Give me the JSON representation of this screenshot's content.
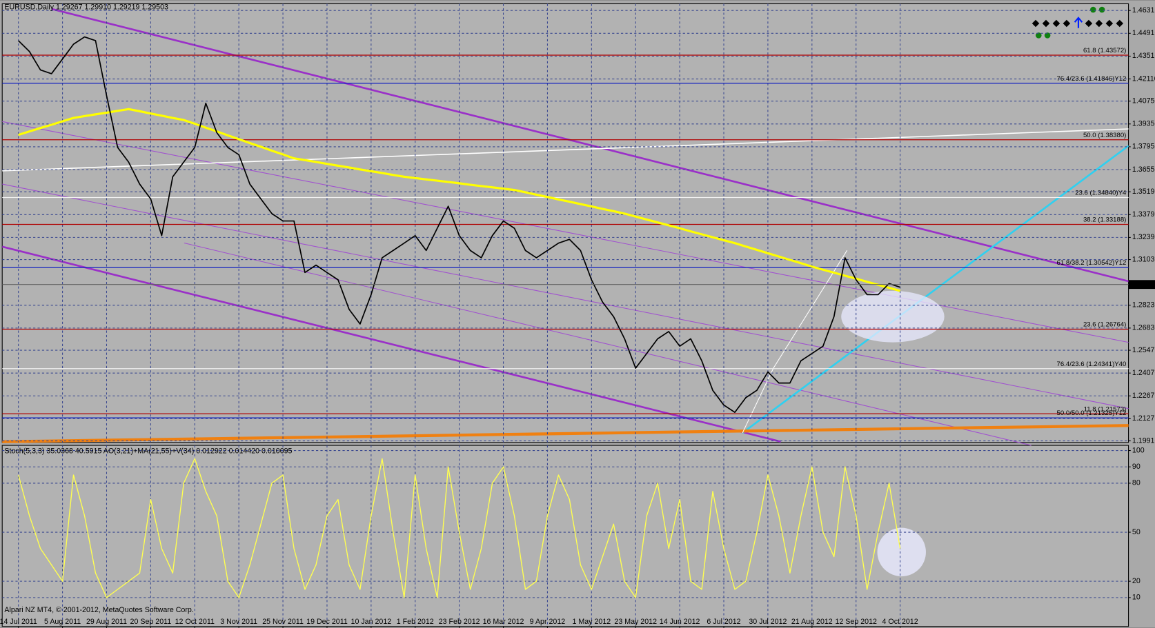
{
  "chart_data": [
    {
      "type": "line",
      "title": "EURUSD,Daily  1.29267 1.29910 1.29219 1.29503",
      "categories": [
        "14 Jul 2011",
        null,
        null,
        null,
        "5 Aug 2011",
        null,
        null,
        null,
        "29 Aug 2011",
        null,
        null,
        null,
        "20 Sep 2011",
        null,
        null,
        null,
        "12 Oct 2011",
        null,
        null,
        null,
        "3 Nov 2011",
        null,
        null,
        null,
        "25 Nov 2011",
        null,
        null,
        null,
        "19 Dec 2011",
        null,
        null,
        null,
        "10 Jan 2012",
        null,
        null,
        null,
        "1 Feb 2012",
        null,
        null,
        null,
        "23 Feb 2012",
        null,
        null,
        null,
        "16 Mar 2012",
        null,
        null,
        null,
        "9 Apr 2012",
        null,
        null,
        null,
        "1 May 2012",
        null,
        null,
        null,
        "23 May 2012",
        null,
        null,
        null,
        "14 Jun 2012",
        null,
        null,
        null,
        "6 Jul 2012",
        null,
        null,
        null,
        "30 Jul 2012",
        null,
        null,
        null,
        "21 Aug 2012",
        null,
        null,
        null,
        "12 Sep 2012",
        null,
        null,
        null,
        "4 Oct 2012",
        null,
        null,
        null
      ],
      "series": [
        {
          "name": "EURUSD",
          "color": "#000000",
          "values": [
            1.4446,
            1.4379,
            1.4266,
            1.4243,
            1.4333,
            1.4424,
            1.4469,
            1.4446,
            1.4108,
            1.3791,
            1.3701,
            1.3566,
            1.3475,
            1.325,
            1.3611,
            1.3701,
            1.3791,
            1.4062,
            1.3882,
            1.3791,
            1.3746,
            1.3566,
            1.3475,
            1.3385,
            1.334,
            1.334,
            1.3024,
            1.3069,
            1.3024,
            1.2979,
            1.2798,
            1.2708,
            1.2888,
            1.3114,
            1.3159,
            1.3204,
            1.325,
            1.3159,
            1.3295,
            1.343,
            1.325,
            1.3159,
            1.3114,
            1.325,
            1.334,
            1.3295,
            1.3159,
            1.3114,
            1.3159,
            1.3204,
            1.3227,
            1.3159,
            1.2979,
            1.2843,
            1.2753,
            1.2617,
            1.2437,
            1.2527,
            1.2617,
            1.2662,
            1.2572,
            1.2617,
            1.2482,
            1.2301,
            1.2211,
            1.2166,
            1.2256,
            1.2301,
            1.2414,
            1.2346,
            1.2346,
            1.2482,
            1.2527,
            1.2572,
            1.2753,
            1.3114,
            1.2979,
            1.2888,
            1.2888,
            1.2956,
            1.2933,
            null,
            null,
            null
          ]
        },
        {
          "name": "MA",
          "color": "#ffff00",
          "values": [
            1.3868,
            1.3889,
            1.391,
            1.393,
            1.3951,
            1.3972,
            1.3983,
            1.3994,
            1.4004,
            1.4015,
            1.4026,
            1.4013,
            1.3999,
            1.3986,
            1.3972,
            1.3959,
            1.3936,
            1.3912,
            1.3889,
            1.3865,
            1.3842,
            1.3818,
            1.3795,
            1.3771,
            1.3748,
            1.3724,
            1.3713,
            1.3702,
            1.369,
            1.3679,
            1.3668,
            1.3656,
            1.3645,
            1.3634,
            1.3622,
            1.3611,
            1.3603,
            1.3595,
            1.3587,
            1.3579,
            1.3571,
            1.3562,
            1.3554,
            1.3546,
            1.3538,
            1.353,
            1.3516,
            1.3501,
            1.3487,
            1.3472,
            1.3458,
            1.3443,
            1.3429,
            1.3414,
            1.34,
            1.3385,
            1.3367,
            1.3349,
            1.3331,
            1.3313,
            1.3295,
            1.3276,
            1.3258,
            1.324,
            1.3222,
            1.3204,
            1.3183,
            1.3163,
            1.3142,
            1.3122,
            1.3101,
            1.3081,
            1.306,
            1.3041,
            1.3023,
            1.3004,
            1.2986,
            1.2967,
            1.2948,
            1.293,
            1.2911,
            null,
            null,
            null
          ]
        }
      ],
      "ylim": [
        1.1986,
        1.4672
      ],
      "yticks": [
        {
          "value": 1.4631,
          "label": "1.46310"
        },
        {
          "value": 1.4491,
          "label": "1.44910"
        },
        {
          "value": 1.4351,
          "label": "1.43510"
        },
        {
          "value": 1.4211,
          "label": "1.42110"
        },
        {
          "value": 1.4075,
          "label": "1.40750"
        },
        {
          "value": 1.3935,
          "label": "1.39350"
        },
        {
          "value": 1.3795,
          "label": "1.37950"
        },
        {
          "value": 1.3655,
          "label": "1.36550"
        },
        {
          "value": 1.3519,
          "label": "1.35190"
        },
        {
          "value": 1.3379,
          "label": "1.33790"
        },
        {
          "value": 1.3239,
          "label": "1.32390"
        },
        {
          "value": 1.3103,
          "label": "1.31030"
        },
        {
          "value": 1.2823,
          "label": "1.28230"
        },
        {
          "value": 1.2683,
          "label": "1.26830"
        },
        {
          "value": 1.2547,
          "label": "1.25470"
        },
        {
          "value": 1.2407,
          "label": "1.24070"
        },
        {
          "value": 1.2267,
          "label": "1.22670"
        },
        {
          "value": 1.2127,
          "label": "1.21270"
        },
        {
          "value": 1.1991,
          "label": "1.19910"
        }
      ],
      "current_price": {
        "value": 1.29503,
        "label": "1.29503"
      },
      "levels": [
        {
          "value": 1.43572,
          "label": "61.8 (1.43572)",
          "color": "#b00000"
        },
        {
          "value": 1.41846,
          "label": "76.4/23.6 (1.41846)Y12",
          "color": "#1020c0"
        },
        {
          "value": 1.3838,
          "label": "50.0 (1.38380)",
          "color": "#b00000"
        },
        {
          "value": 1.3484,
          "label": "23.6 (1.34840)Y4",
          "color": "#f0f0f0"
        },
        {
          "value": 1.33188,
          "label": "38.2 (1.33188)",
          "color": "#b00000"
        },
        {
          "value": 1.30542,
          "label": "61.8/38.2 (1.30542)Y12",
          "color": "#1020c0"
        },
        {
          "value": 1.26764,
          "label": "23.6 (1.26764)",
          "color": "#b00000"
        },
        {
          "value": 1.24341,
          "label": "76.4/23.6 (1.24341)Y40",
          "color": "#f0f0f0"
        },
        {
          "value": 1.21573,
          "label": "11.8 (1.21573)",
          "color": "#b00000"
        },
        {
          "value": 1.21325,
          "label": "50.0/50.0 (1.21325)Y12",
          "color": "#1020c0"
        }
      ],
      "grid": true
    },
    {
      "type": "line",
      "title": "Stoch(5,3,3) 35.0368 40.5915   AO(3,21)+MA(21,55)+V(34) 0.012922 0.014420 0.010095",
      "series": [
        {
          "name": "Stoch",
          "color": "#ffff50",
          "values": [
            85,
            60,
            40,
            30,
            20,
            85,
            60,
            25,
            10,
            15,
            20,
            25,
            70,
            40,
            25,
            80,
            95,
            75,
            60,
            20,
            10,
            30,
            55,
            80,
            85,
            40,
            15,
            30,
            60,
            70,
            30,
            15,
            60,
            95,
            50,
            10,
            85,
            40,
            10,
            90,
            50,
            15,
            40,
            80,
            90,
            60,
            15,
            20,
            60,
            85,
            70,
            30,
            15,
            35,
            55,
            20,
            10,
            60,
            80,
            40,
            70,
            20,
            15,
            75,
            40,
            15,
            20,
            50,
            85,
            60,
            25,
            60,
            90,
            50,
            35,
            90,
            60,
            15,
            50,
            80,
            40,
            null,
            null,
            null
          ]
        }
      ],
      "ylim": [
        0,
        100
      ],
      "yticks": [
        100,
        90,
        80,
        50,
        20,
        10
      ],
      "grid": true
    }
  ],
  "footer": "Alpari NZ MT4, © 2001-2012, MetaQuotes Software Corp."
}
